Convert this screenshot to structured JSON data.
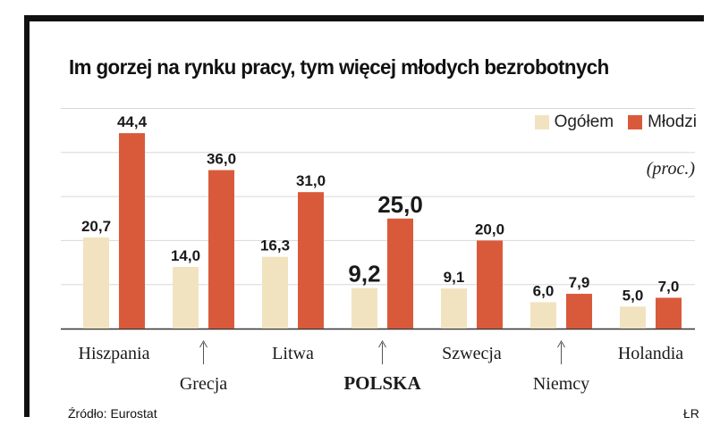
{
  "title": "Im gorzej na rynku pracy, tym więcej młodych bezrobotnych",
  "unit": "(proc.)",
  "source": "Źródło: Eurostat",
  "credit": "ŁR",
  "colors": {
    "ogolem": "#f2e3c0",
    "mlodzi": "#d95a3b",
    "grid": "#d8d8d8",
    "axis": "#333333"
  },
  "chart_data": {
    "type": "bar",
    "title": "Im gorzej na rynku pracy, tym więcej młodych bezrobotnych",
    "unit": "(proc.)",
    "categories": [
      "Hiszpania",
      "Grecja",
      "Litwa",
      "POLSKA",
      "Szwecja",
      "Niemcy",
      "Holandia"
    ],
    "highlight": "POLSKA",
    "series": [
      {
        "name": "Ogółem",
        "values": [
          20.7,
          14.0,
          16.3,
          9.2,
          9.1,
          6.0,
          5.0
        ],
        "labels": [
          "20,7",
          "14,0",
          "16,3",
          "9,2",
          "9,1",
          "6,0",
          "5,0"
        ]
      },
      {
        "name": "Młodzi",
        "values": [
          44.4,
          36.0,
          31.0,
          25.0,
          20.0,
          7.9,
          7.0
        ],
        "labels": [
          "44,4",
          "36,0",
          "31,0",
          "25,0",
          "20,0",
          "7,9",
          "7,0"
        ]
      }
    ],
    "ylim": [
      0,
      50
    ],
    "legend": "top-right",
    "grid": true
  }
}
